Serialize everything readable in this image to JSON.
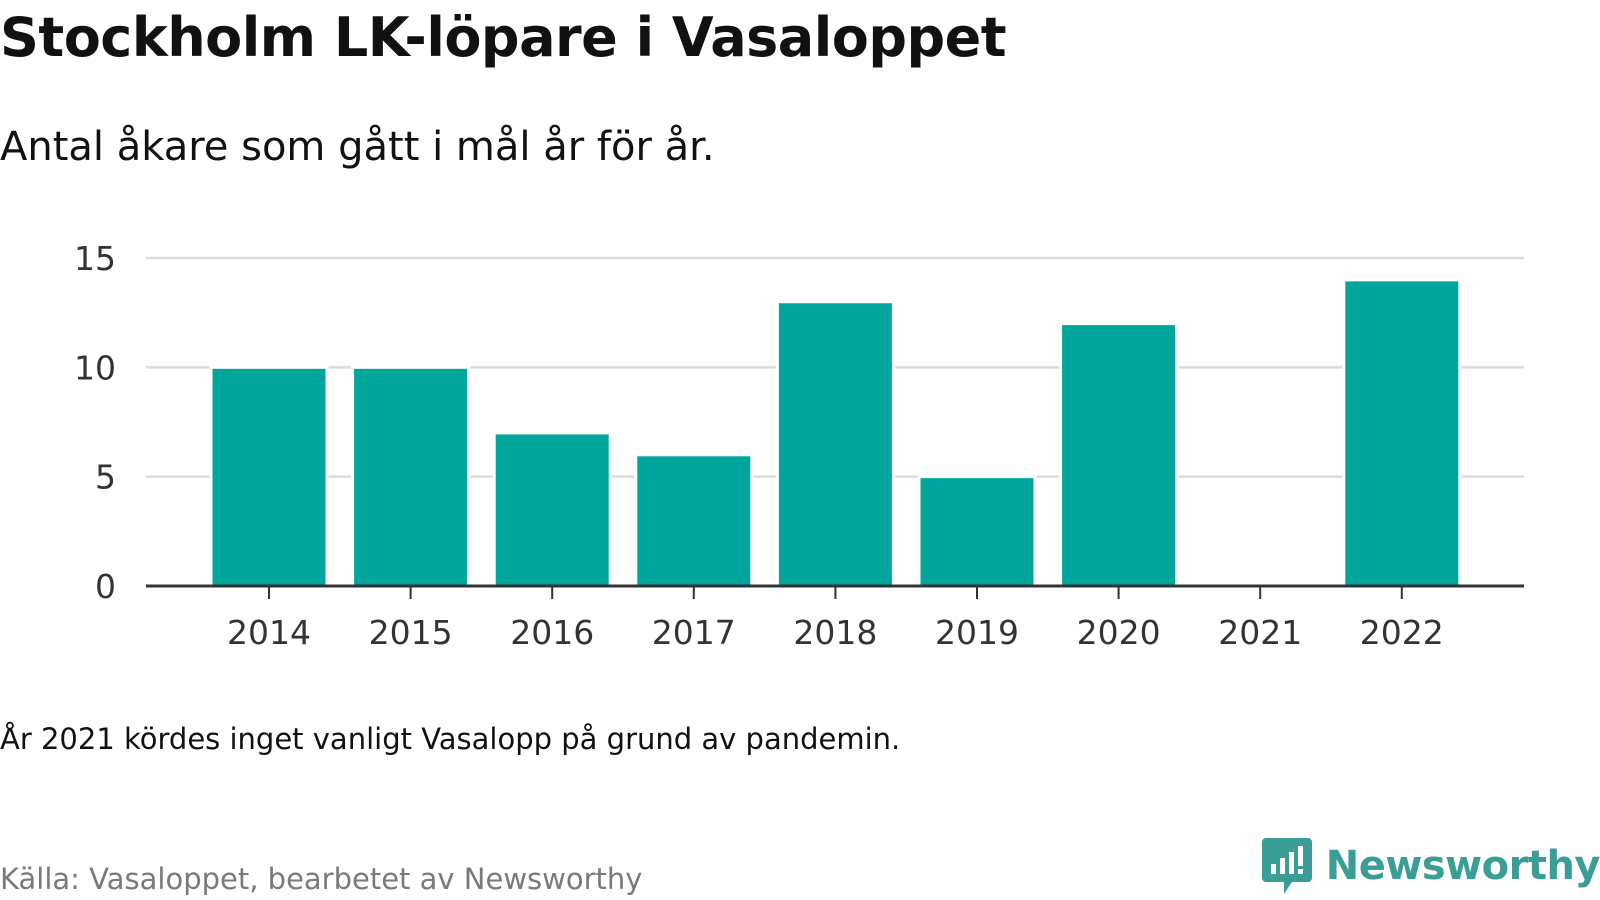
{
  "title": "Stockholm LK-löpare i Vasaloppet",
  "subtitle": "Antal åkare som gått i mål år för år.",
  "note": "År 2021 kördes inget vanligt Vasalopp på grund av pandemin.",
  "source": "Källa: Vasaloppet, bearbetet av Newsworthy",
  "brand": {
    "name": "Newsworthy",
    "logo_icon": "newsworthy-logo-icon",
    "color": "#3a9e96"
  },
  "colors": {
    "bar": "#00a59b",
    "grid": "#dcdcdc",
    "axis": "#333333"
  },
  "chart_data": {
    "type": "bar",
    "title": "Stockholm LK-löpare i Vasaloppet",
    "subtitle": "Antal åkare som gått i mål år för år.",
    "xlabel": "",
    "ylabel": "",
    "categories": [
      "2014",
      "2015",
      "2016",
      "2017",
      "2018",
      "2019",
      "2020",
      "2021",
      "2022"
    ],
    "values": [
      10,
      10,
      7,
      6,
      13,
      5,
      12,
      0,
      14
    ],
    "ylim": [
      0,
      15
    ],
    "yticks": [
      0,
      5,
      10,
      15
    ],
    "grid": true,
    "legend": "none"
  }
}
